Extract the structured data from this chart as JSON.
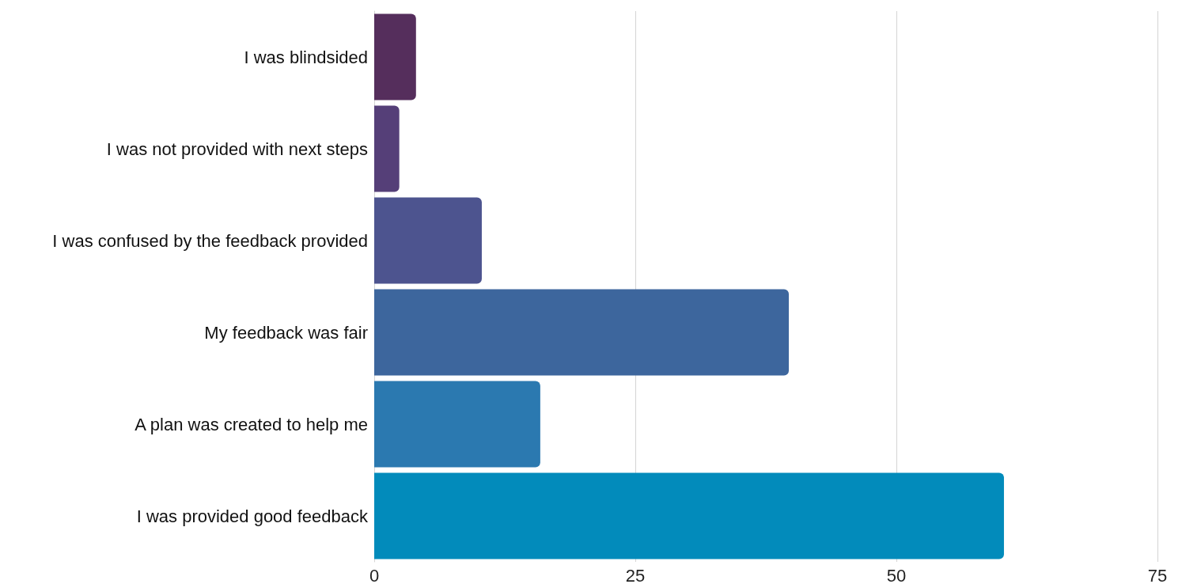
{
  "chart_data": {
    "type": "bar",
    "orientation": "horizontal",
    "categories": [
      "I was blindsided",
      "I was not provided with next steps",
      "I was confused by the feedback provided",
      "My feedback was fair",
      "A plan was created to help me",
      "I was provided good feedback"
    ],
    "values": [
      4.0,
      2.4,
      10.3,
      39.7,
      15.9,
      60.3
    ],
    "colors": [
      "#552e5c",
      "#553f78",
      "#4d548f",
      "#3d669d",
      "#2b79b0",
      "#028bbb"
    ],
    "xlim": [
      0,
      75
    ],
    "xticks": [
      0,
      25,
      50,
      75
    ],
    "grid": "x"
  }
}
